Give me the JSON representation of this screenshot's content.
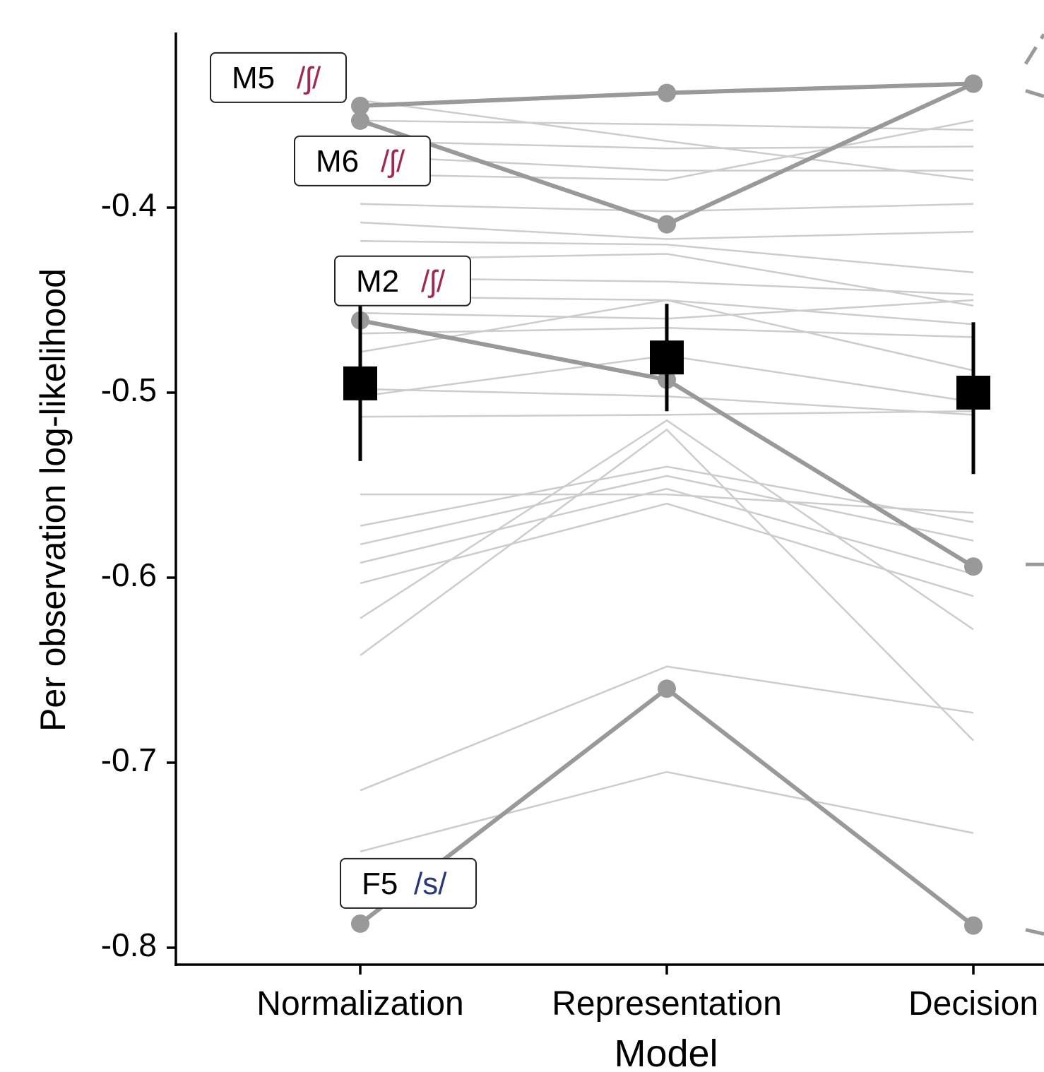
{
  "chart_data": {
    "type": "line",
    "xlabel": "Model",
    "ylabel": "Per observation log-likelihood",
    "categories": [
      "Normalization",
      "Representation",
      "Decision"
    ],
    "ylim": [
      -0.8,
      -0.33
    ],
    "yticks": [
      -0.8,
      -0.7,
      -0.6,
      -0.5,
      -0.4
    ],
    "ytick_labels": [
      "-0.8",
      "-0.7",
      "-0.6",
      "-0.5",
      "-0.4"
    ],
    "grid": false,
    "background_series": [
      [
        -0.342,
        -0.364,
        -0.385
      ],
      [
        -0.353,
        -0.355,
        -0.358
      ],
      [
        -0.364,
        -0.368,
        -0.367
      ],
      [
        -0.372,
        -0.38,
        -0.38
      ],
      [
        -0.382,
        -0.385,
        -0.353
      ],
      [
        -0.398,
        -0.402,
        -0.398
      ],
      [
        -0.408,
        -0.417,
        -0.413
      ],
      [
        -0.418,
        -0.42,
        -0.435
      ],
      [
        -0.428,
        -0.425,
        -0.453
      ],
      [
        -0.438,
        -0.44,
        -0.447
      ],
      [
        -0.448,
        -0.45,
        -0.463
      ],
      [
        -0.457,
        -0.46,
        -0.45
      ],
      [
        -0.468,
        -0.465,
        -0.47
      ],
      [
        -0.478,
        -0.45,
        -0.488
      ],
      [
        -0.498,
        -0.502,
        -0.512
      ],
      [
        -0.502,
        -0.48,
        -0.505
      ],
      [
        -0.513,
        -0.512,
        -0.51
      ],
      [
        -0.555,
        -0.555,
        -0.565
      ],
      [
        -0.572,
        -0.54,
        -0.57
      ],
      [
        -0.582,
        -0.545,
        -0.58
      ],
      [
        -0.592,
        -0.552,
        -0.598
      ],
      [
        -0.603,
        -0.56,
        -0.61
      ],
      [
        -0.622,
        -0.515,
        -0.628
      ],
      [
        -0.642,
        -0.52,
        -0.688
      ],
      [
        -0.715,
        -0.648,
        -0.673
      ],
      [
        -0.748,
        -0.705,
        -0.738
      ]
    ],
    "highlighted_series": [
      {
        "name": "M5",
        "sound": "/ʃ/",
        "values": [
          -0.345,
          -0.338,
          -0.333
        ]
      },
      {
        "name": "M6",
        "sound": "/ʃ/",
        "values": [
          -0.353,
          -0.409,
          -0.333
        ]
      },
      {
        "name": "M2",
        "sound": "/ʃ/",
        "values": [
          -0.461,
          -0.493,
          -0.594
        ]
      },
      {
        "name": "F5",
        "sound": "/s/",
        "values": [
          -0.787,
          -0.66,
          -0.788
        ]
      }
    ],
    "means": [
      {
        "value": -0.495,
        "ci": [
          -0.537,
          -0.453
        ]
      },
      {
        "value": -0.481,
        "ci": [
          -0.51,
          -0.452
        ]
      },
      {
        "value": -0.5,
        "ci": [
          -0.544,
          -0.462
        ]
      }
    ],
    "colors": {
      "background_line": "#cccccc",
      "highlight_line": "#999999",
      "mean_marker": "#000000",
      "sh_label": "#9e2a56",
      "s_label": "#26387a",
      "axis": "#000000"
    }
  }
}
